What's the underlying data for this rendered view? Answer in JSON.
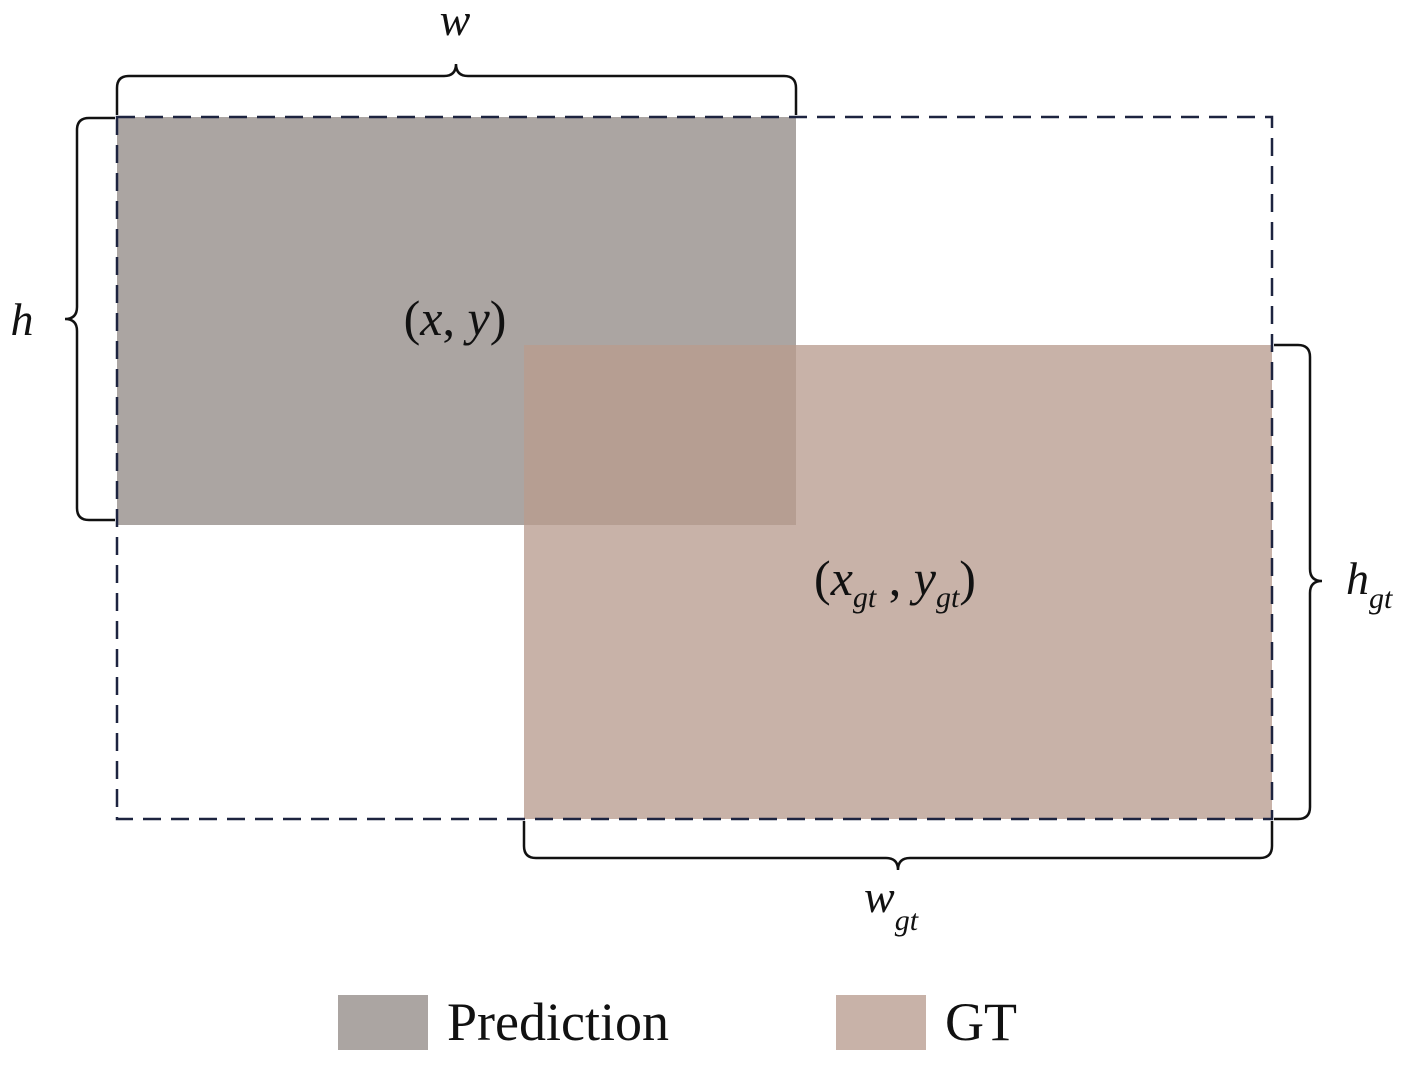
{
  "colors": {
    "prediction": "#aba5a2",
    "gt": "#c8b2a8",
    "overlap": "#b69e92",
    "enclosing_box_stroke": "#1d2440",
    "brace": "#111111"
  },
  "labels": {
    "w": "w",
    "h": "h",
    "w_gt_base": "w",
    "w_gt_sub": "gt",
    "h_gt_base": "h",
    "h_gt_sub": "gt"
  },
  "prediction_center": {
    "open": "(",
    "x": "x",
    "comma": ", ",
    "y": "y",
    "close": ")"
  },
  "gt_center": {
    "open": "(",
    "x": "x",
    "x_sub": "gt",
    "comma": " , ",
    "y": "y",
    "y_sub": "gt",
    "close": ")"
  },
  "legend": {
    "prediction_label": "Prediction",
    "gt_label": "GT"
  }
}
